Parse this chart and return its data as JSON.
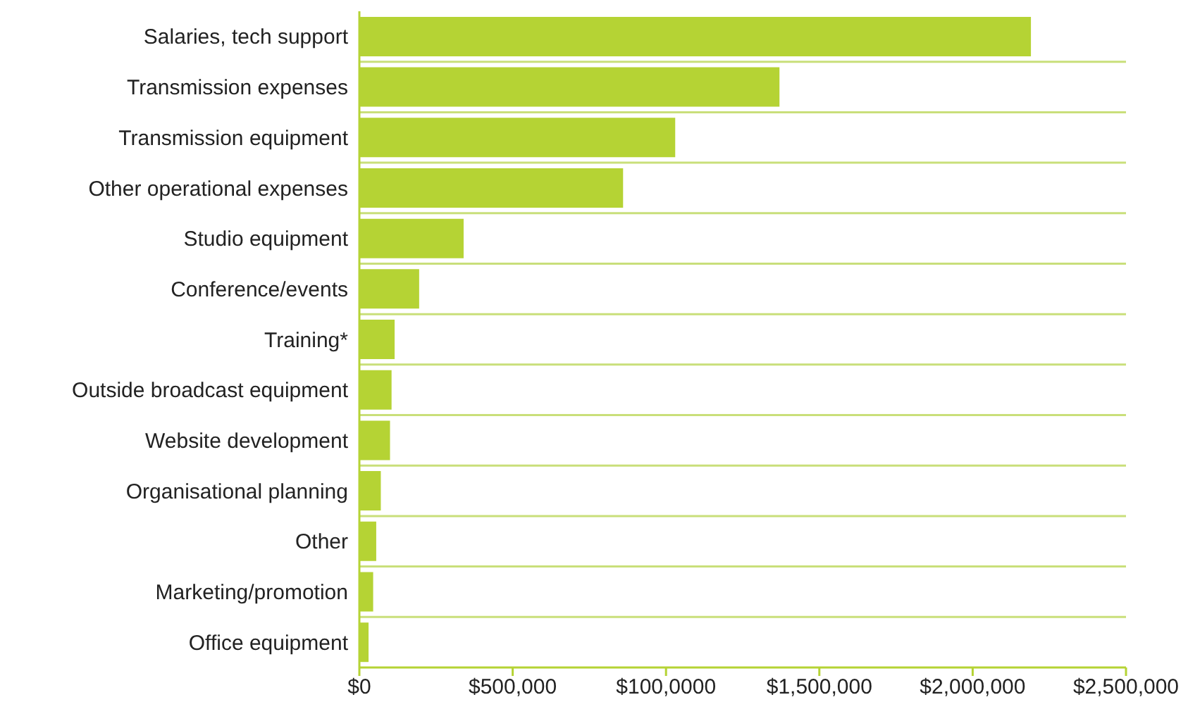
{
  "chart_data": {
    "type": "bar",
    "orientation": "horizontal",
    "categories": [
      "Salaries, tech support",
      "Transmission expenses",
      "Transmission equipment",
      "Other operational expenses",
      "Studio equipment",
      "Conference/events",
      "Training*",
      "Outside broadcast equipment",
      "Website development",
      "Organisational planning",
      "Other",
      "Marketing/promotion",
      "Office equipment"
    ],
    "values": [
      2190000,
      1370000,
      1030000,
      860000,
      340000,
      195000,
      115000,
      105000,
      100000,
      70000,
      55000,
      45000,
      30000
    ],
    "color": "#b5d334",
    "xlim": [
      0,
      2500000
    ],
    "xticks": [
      {
        "value": 0,
        "label": "$0"
      },
      {
        "value": 500000,
        "label": "$500,000"
      },
      {
        "value": 1000000,
        "label": "$100,0000"
      },
      {
        "value": 1500000,
        "label": "$1,500,000"
      },
      {
        "value": 2000000,
        "label": "$2,000,000"
      },
      {
        "value": 2500000,
        "label": "$2,500,000"
      }
    ],
    "grid": "y"
  }
}
